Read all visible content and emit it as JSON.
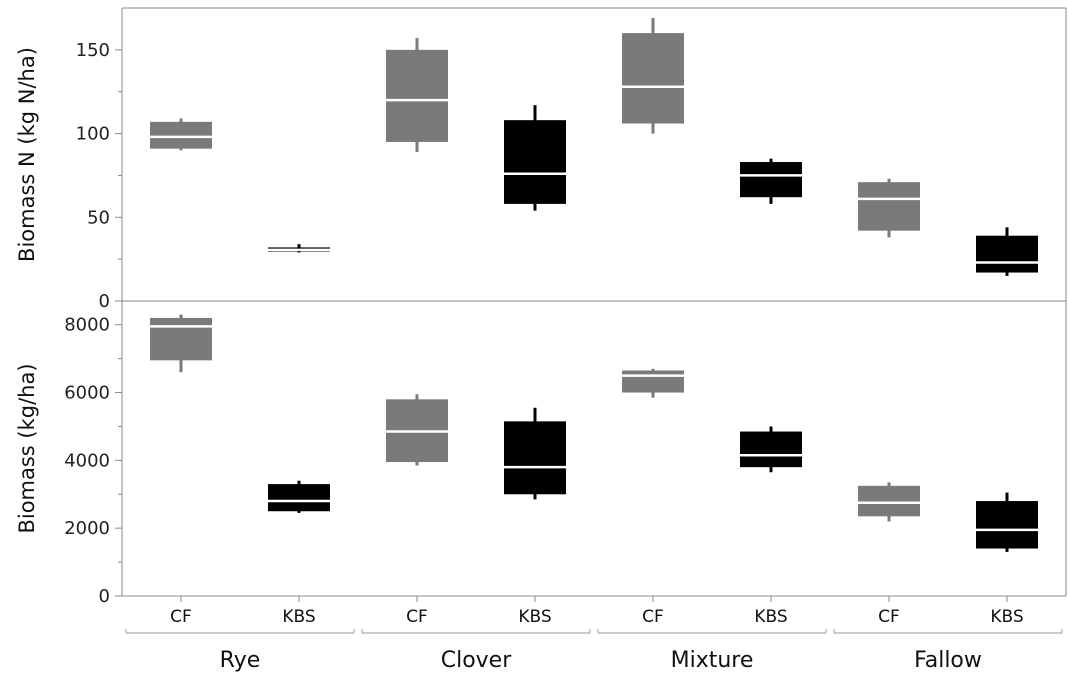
{
  "chart_data": {
    "type": "box",
    "groups": [
      "Rye",
      "Clover",
      "Mixture",
      "Fallow"
    ],
    "sites": [
      "CF",
      "KBS"
    ],
    "site_colors": {
      "CF": "#7a7a7a",
      "KBS": "#000000"
    },
    "median_color": "#ffffff",
    "panels": [
      {
        "id": "biomass_n",
        "ylabel": "Biomass N (kg N/ha)",
        "ylim": [
          0,
          175
        ],
        "yticks": [
          0,
          50,
          100,
          150
        ],
        "minor_ticks": [
          25,
          75,
          125
        ],
        "boxes": [
          {
            "group": "Rye",
            "site": "CF",
            "min": 90,
            "q1": 91,
            "median": 98,
            "q3": 107,
            "max": 109
          },
          {
            "group": "Rye",
            "site": "KBS",
            "min": 29,
            "q1": 29.5,
            "median": 30.5,
            "q3": 32,
            "max": 34
          },
          {
            "group": "Clover",
            "site": "CF",
            "min": 89,
            "q1": 95,
            "median": 120,
            "q3": 150,
            "max": 157
          },
          {
            "group": "Clover",
            "site": "KBS",
            "min": 54,
            "q1": 58,
            "median": 76,
            "q3": 108,
            "max": 117
          },
          {
            "group": "Mixture",
            "site": "CF",
            "min": 100,
            "q1": 106,
            "median": 128,
            "q3": 160,
            "max": 169
          },
          {
            "group": "Mixture",
            "site": "KBS",
            "min": 58,
            "q1": 62,
            "median": 75,
            "q3": 83,
            "max": 85
          },
          {
            "group": "Fallow",
            "site": "CF",
            "min": 38,
            "q1": 42,
            "median": 61,
            "q3": 71,
            "max": 73
          },
          {
            "group": "Fallow",
            "site": "KBS",
            "min": 15,
            "q1": 17,
            "median": 23,
            "q3": 39,
            "max": 44
          }
        ]
      },
      {
        "id": "biomass",
        "ylabel": "Biomass (kg/ha)",
        "ylim": [
          0,
          8700
        ],
        "yticks": [
          0,
          2000,
          4000,
          6000,
          8000
        ],
        "minor_ticks": [
          1000,
          3000,
          5000,
          7000
        ],
        "boxes": [
          {
            "group": "Rye",
            "site": "CF",
            "min": 6600,
            "q1": 6950,
            "median": 7950,
            "q3": 8200,
            "max": 8300
          },
          {
            "group": "Rye",
            "site": "KBS",
            "min": 2450,
            "q1": 2500,
            "median": 2800,
            "q3": 3300,
            "max": 3400
          },
          {
            "group": "Clover",
            "site": "CF",
            "min": 3850,
            "q1": 3950,
            "median": 4850,
            "q3": 5800,
            "max": 5950
          },
          {
            "group": "Clover",
            "site": "KBS",
            "min": 2850,
            "q1": 3000,
            "median": 3800,
            "q3": 5150,
            "max": 5550
          },
          {
            "group": "Mixture",
            "site": "CF",
            "min": 5850,
            "q1": 6000,
            "median": 6500,
            "q3": 6650,
            "max": 6700
          },
          {
            "group": "Mixture",
            "site": "KBS",
            "min": 3650,
            "q1": 3800,
            "median": 4150,
            "q3": 4850,
            "max": 5000
          },
          {
            "group": "Fallow",
            "site": "CF",
            "min": 2200,
            "q1": 2350,
            "median": 2750,
            "q3": 3250,
            "max": 3350
          },
          {
            "group": "Fallow",
            "site": "KBS",
            "min": 1300,
            "q1": 1400,
            "median": 1950,
            "q3": 2800,
            "max": 3050
          }
        ]
      }
    ],
    "grid": false,
    "legend": "none"
  }
}
